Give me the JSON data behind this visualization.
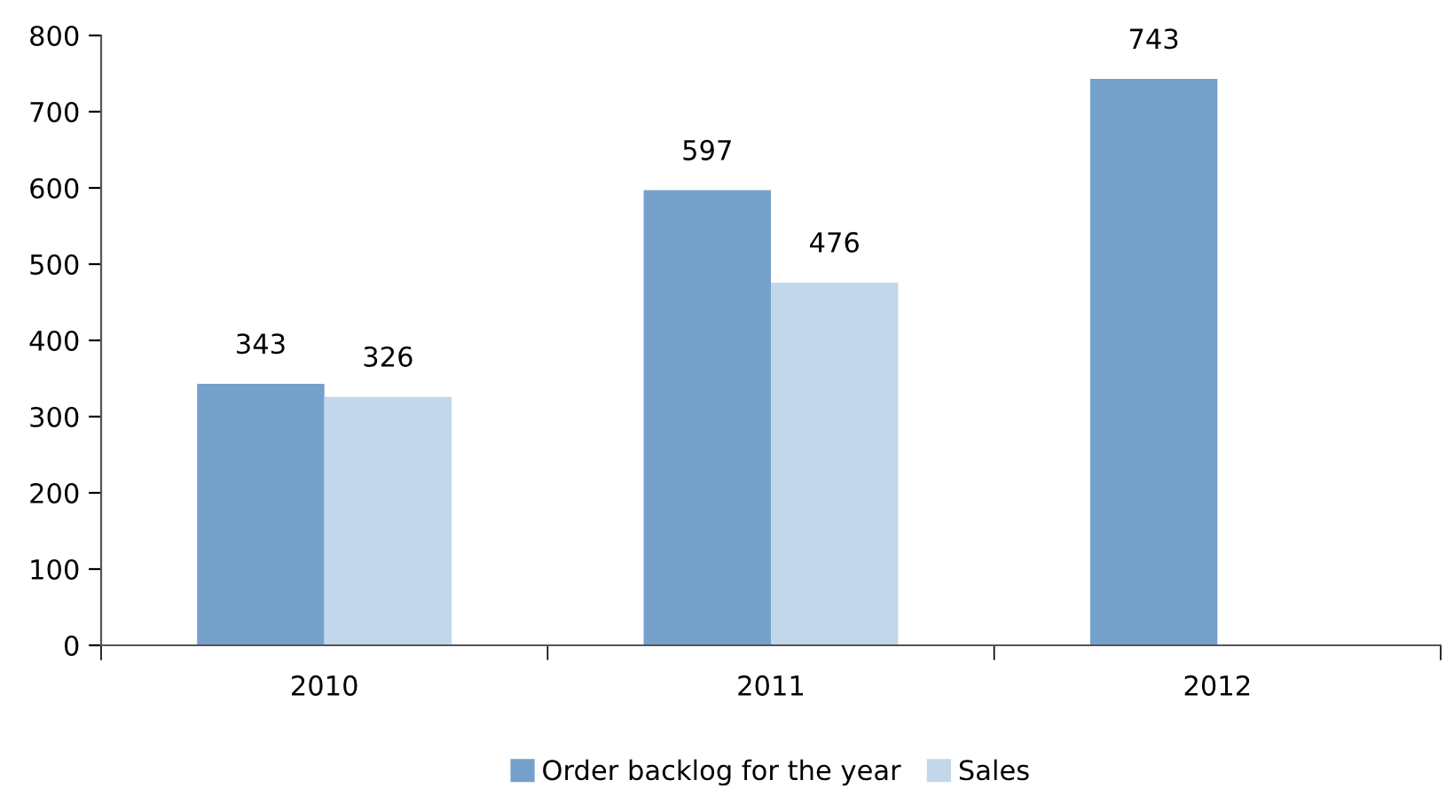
{
  "chart_data": {
    "type": "bar",
    "categories": [
      "2010",
      "2011",
      "2012"
    ],
    "series": [
      {
        "name": "Order backlog for the year",
        "color": "#75a1cb",
        "values": [
          343,
          597,
          743
        ]
      },
      {
        "name": "Sales",
        "color": "#c3d7ea",
        "values": [
          326,
          476,
          null
        ]
      }
    ],
    "ylim": [
      0,
      800
    ],
    "yticks": [
      0,
      100,
      200,
      300,
      400,
      500,
      600,
      700,
      800
    ],
    "grid": false,
    "legend": "bottom",
    "data_labels": true
  }
}
